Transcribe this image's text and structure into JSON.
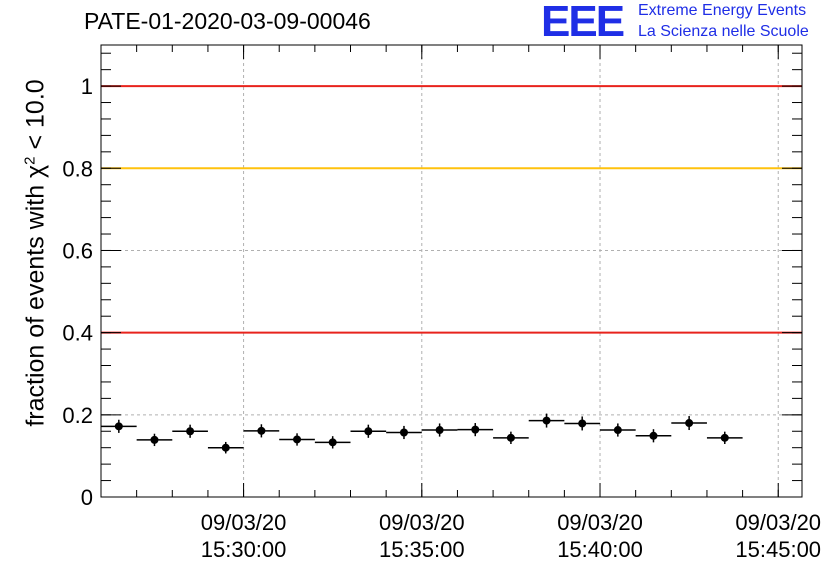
{
  "chart_data": {
    "type": "scatter",
    "title": "PATE-01-2020-03-09-00046",
    "ylabel_main": "fraction of events with χ",
    "ylabel_sup": "2",
    "ylabel_tail": " < 10.0",
    "xlabel": "",
    "ylim": [
      0,
      1.1
    ],
    "xlim": [
      "15:26:00",
      "15:45:40"
    ],
    "grid": true,
    "y_ticks": [
      "0",
      "0.2",
      "0.4",
      "0.6",
      "0.8",
      "1"
    ],
    "x_ticks": [
      {
        "date": "09/03/20",
        "time": "15:30:00"
      },
      {
        "date": "09/03/20",
        "time": "15:35:00"
      },
      {
        "date": "09/03/20",
        "time": "15:40:00"
      },
      {
        "date": "09/03/20",
        "time": "15:45:00"
      }
    ],
    "reference_lines": [
      {
        "y": 1.0,
        "color": "#e8231c"
      },
      {
        "y": 0.8,
        "color": "#ffc20e"
      },
      {
        "y": 0.4,
        "color": "#e8231c"
      }
    ],
    "bin_width_s": 60,
    "points": [
      {
        "x": "15:26:30",
        "y": 0.172,
        "err": 0.016
      },
      {
        "x": "15:27:30",
        "y": 0.139,
        "err": 0.015
      },
      {
        "x": "15:28:30",
        "y": 0.16,
        "err": 0.016
      },
      {
        "x": "15:29:30",
        "y": 0.12,
        "err": 0.014
      },
      {
        "x": "15:30:30",
        "y": 0.161,
        "err": 0.016
      },
      {
        "x": "15:31:30",
        "y": 0.14,
        "err": 0.015
      },
      {
        "x": "15:32:30",
        "y": 0.133,
        "err": 0.015
      },
      {
        "x": "15:33:30",
        "y": 0.16,
        "err": 0.016
      },
      {
        "x": "15:34:30",
        "y": 0.157,
        "err": 0.016
      },
      {
        "x": "15:35:30",
        "y": 0.163,
        "err": 0.016
      },
      {
        "x": "15:36:30",
        "y": 0.164,
        "err": 0.016
      },
      {
        "x": "15:37:30",
        "y": 0.144,
        "err": 0.015
      },
      {
        "x": "15:38:30",
        "y": 0.186,
        "err": 0.017
      },
      {
        "x": "15:39:30",
        "y": 0.179,
        "err": 0.017
      },
      {
        "x": "15:40:30",
        "y": 0.163,
        "err": 0.016
      },
      {
        "x": "15:41:30",
        "y": 0.149,
        "err": 0.016
      },
      {
        "x": "15:42:30",
        "y": 0.18,
        "err": 0.017
      },
      {
        "x": "15:43:30",
        "y": 0.144,
        "err": 0.015
      }
    ],
    "series_color": "#000000"
  },
  "logo": {
    "mark": "EEE",
    "line1": "Extreme Energy Events",
    "line2": "La Scienza nelle Scuole"
  }
}
